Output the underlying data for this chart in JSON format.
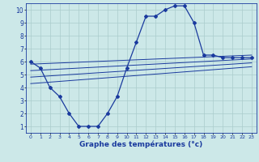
{
  "xlabel": "Graphe des températures (°c)",
  "bg_color": "#cce8e8",
  "grid_color": "#aacccc",
  "line_color": "#1a3a9e",
  "x_ticks": [
    0,
    1,
    2,
    3,
    4,
    5,
    6,
    7,
    8,
    9,
    10,
    11,
    12,
    13,
    14,
    15,
    16,
    17,
    18,
    19,
    20,
    21,
    22,
    23
  ],
  "y_ticks": [
    1,
    2,
    3,
    4,
    5,
    6,
    7,
    8,
    9,
    10
  ],
  "xlim": [
    -0.5,
    23.5
  ],
  "ylim": [
    0.5,
    10.5
  ],
  "main_line": {
    "x": [
      0,
      1,
      2,
      3,
      4,
      5,
      6,
      7,
      8,
      9,
      10,
      11,
      12,
      13,
      14,
      15,
      16,
      17,
      18,
      19,
      20,
      21,
      22,
      23
    ],
    "y": [
      6.0,
      5.5,
      4.0,
      3.3,
      2.0,
      1.0,
      1.0,
      1.0,
      2.0,
      3.3,
      5.5,
      7.5,
      9.5,
      9.5,
      10.0,
      10.3,
      10.3,
      9.0,
      6.5,
      6.5,
      6.3,
      6.3,
      6.3,
      6.3
    ]
  },
  "ref_lines": [
    {
      "x": [
        0,
        23
      ],
      "y": [
        5.8,
        6.5
      ]
    },
    {
      "x": [
        0,
        23
      ],
      "y": [
        5.3,
        6.2
      ]
    },
    {
      "x": [
        0,
        23
      ],
      "y": [
        4.8,
        5.9
      ]
    },
    {
      "x": [
        0,
        23
      ],
      "y": [
        4.3,
        5.6
      ]
    }
  ]
}
